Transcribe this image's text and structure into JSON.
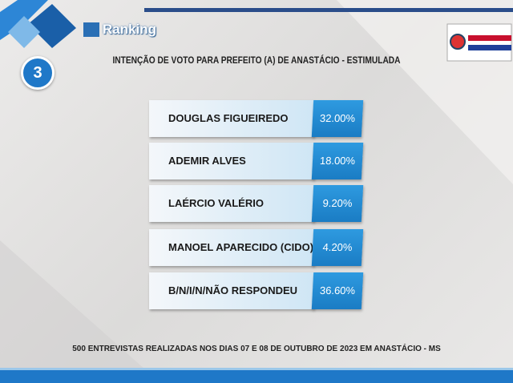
{
  "header": {
    "logo": "Ranking",
    "badge": "3",
    "title": "INTENÇÃO DE VOTO PARA PREFEITO (A) DE ANASTÁCIO - ESTIMULADA"
  },
  "rows": [
    {
      "name": "DOUGLAS FIGUEIREDO",
      "value": "32.00%"
    },
    {
      "name": "ADEMIR ALVES",
      "value": "18.00%"
    },
    {
      "name": "LAÉRCIO VALÉRIO",
      "value": "9.20%"
    },
    {
      "name": "MANOEL APARECIDO (CIDO)",
      "value": "4.20%"
    },
    {
      "name": "B/N/I/N/NÃO RESPONDEU",
      "value": "36.60%"
    }
  ],
  "footer": "500 ENTREVISTAS REALIZADAS NOS DIAS 07 E 08 DE OUTUBRO DE 2023 EM ANASTÁCIO - MS"
}
